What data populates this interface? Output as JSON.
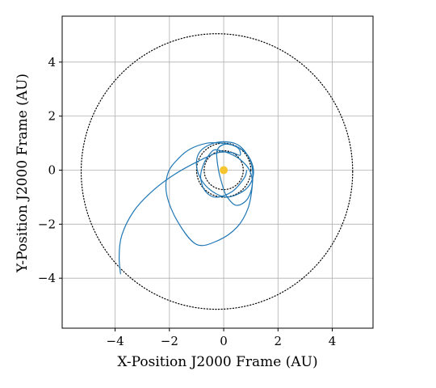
{
  "chart_data": {
    "type": "line",
    "xlabel": "X-Position J2000 Frame (AU)",
    "ylabel": "Y-Position J2000 Frame (AU)",
    "xlim": [
      -5.95,
      5.5
    ],
    "ylim": [
      -5.85,
      5.7
    ],
    "xticks": [
      -4,
      -2,
      0,
      2,
      4
    ],
    "yticks": [
      -4,
      -2,
      0,
      2,
      4
    ],
    "xtick_labels": [
      "−4",
      "−2",
      "0",
      "2",
      "4"
    ],
    "ytick_labels": [
      "−4",
      "−2",
      "0",
      "2",
      "4"
    ],
    "grid": true,
    "sun": {
      "x": 0,
      "y": 0,
      "color": "#f5c431"
    },
    "orbits": [
      {
        "center_x": 0,
        "center_y": 0,
        "rx": 0.72,
        "ry": 0.72,
        "color": "#000000",
        "style": "dotted"
      },
      {
        "center_x": 0,
        "center_y": 0,
        "rx": 1.0,
        "ry": 1.0,
        "color": "#000000",
        "style": "dotted"
      },
      {
        "center_x": -0.25,
        "center_y": -0.05,
        "rx": 5.0,
        "ry": 5.1,
        "color": "#000000",
        "style": "dotted"
      }
    ],
    "series": [
      {
        "color": "#1f77b4",
        "style": "solid",
        "x": [
          -3.8,
          -3.85,
          -3.75,
          -3.3,
          -2.6,
          -1.8,
          -0.9,
          -0.2,
          0.3,
          0.6,
          0.55,
          0.25,
          -0.1,
          -0.6,
          -1.2,
          -1.65,
          -2.05,
          -2.1,
          -1.7,
          -1.0,
          -0.2,
          0.5,
          0.9,
          1.05,
          1.05,
          0.85,
          0.5,
          0.0,
          -0.5,
          -0.9,
          -1.0,
          -0.8,
          -0.4,
          0.1,
          0.6,
          0.95,
          1.1,
          1.0,
          0.75,
          0.4,
          0.0,
          -0.25,
          -0.2,
          -0.05,
          0.1,
          0.45,
          0.85,
          1.05,
          0.95,
          0.6,
          0.25,
          -0.05,
          -0.35,
          -0.55,
          -0.75,
          -0.85,
          -0.7,
          -0.3,
          0.3,
          0.75,
          0.85
        ],
        "y": [
          -3.85,
          -3.2,
          -2.4,
          -1.5,
          -0.75,
          -0.15,
          0.35,
          0.65,
          0.65,
          0.55,
          0.8,
          0.95,
          1.0,
          1.0,
          0.8,
          0.45,
          -0.1,
          -0.9,
          -1.9,
          -2.75,
          -2.6,
          -2.1,
          -1.4,
          -0.6,
          0.1,
          0.6,
          0.95,
          1.05,
          0.95,
          0.65,
          0.15,
          -0.4,
          -0.8,
          -1.0,
          -0.85,
          -0.55,
          -0.1,
          0.35,
          0.7,
          0.9,
          0.95,
          0.7,
          0.05,
          -0.55,
          -0.95,
          -1.3,
          -1.1,
          -0.55,
          0.0,
          0.4,
          0.6,
          0.7,
          0.75,
          0.55,
          0.2,
          -0.25,
          -0.75,
          -1.0,
          -0.8,
          -0.3,
          0.0
        ]
      }
    ]
  }
}
